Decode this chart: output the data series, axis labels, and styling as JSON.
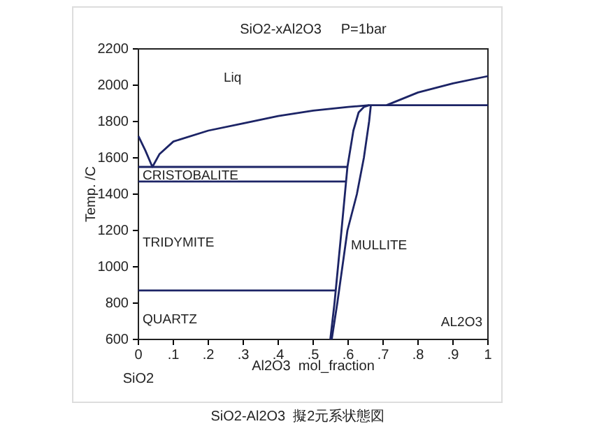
{
  "chart_data": {
    "type": "line",
    "title": "SiO2-xAl2O3     P=1bar",
    "xlabel": "Al2O3  mol_fraction",
    "ylabel": "Temp. /C",
    "xlim": [
      0,
      1
    ],
    "ylim": [
      600,
      2200
    ],
    "xticks": [
      0,
      {
        "value": 0.1,
        "label": ".1"
      },
      {
        "value": 0.2,
        "label": ".2"
      },
      {
        "value": 0.3,
        "label": ".3"
      },
      {
        "value": 0.4,
        "label": ".4"
      },
      {
        "value": 0.5,
        "label": ".5"
      },
      {
        "value": 0.6,
        "label": ".6"
      },
      {
        "value": 0.7,
        "label": ".7"
      },
      {
        "value": 0.8,
        "label": ".8"
      },
      {
        "value": 0.9,
        "label": ".9"
      },
      1
    ],
    "yticks": [
      600,
      800,
      1000,
      1200,
      1400,
      1600,
      1800,
      2000,
      2200
    ],
    "grid": false,
    "marker": "none",
    "line_style": "solid",
    "series": [
      {
        "color": "#1c2466",
        "x": [
          0,
          0.02,
          0.04,
          0.06,
          0.1,
          0.2,
          0.3,
          0.4,
          0.5,
          0.6,
          0.66,
          1
        ],
        "values": [
          1720,
          1640,
          1550,
          1620,
          1690,
          1750,
          1790,
          1830,
          1860,
          1880,
          1890,
          1890
        ]
      },
      {
        "color": "#1c2466",
        "x": [
          0.71,
          0.8,
          0.9,
          1
        ],
        "values": [
          1890,
          1960,
          2010,
          2050
        ]
      },
      {
        "color": "#1c2466",
        "x": [
          0,
          0.6
        ],
        "values": [
          1550,
          1550
        ]
      },
      {
        "color": "#1c2466",
        "x": [
          0,
          0.595
        ],
        "values": [
          1470,
          1470
        ]
      },
      {
        "color": "#1c2466",
        "x": [
          0,
          0.565
        ],
        "values": [
          870,
          870
        ]
      },
      {
        "color": "#1c2466",
        "x": [
          0.549,
          0.561,
          0.581,
          0.598,
          0.615,
          0.63,
          0.645,
          0.66
        ],
        "values": [
          600,
          800,
          1200,
          1550,
          1750,
          1850,
          1880,
          1890
        ]
      },
      {
        "color": "#1c2466",
        "x": [
          0.553,
          0.569,
          0.598,
          0.625,
          0.645,
          0.66,
          0.665
        ],
        "values": [
          600,
          800,
          1200,
          1400,
          1600,
          1800,
          1890
        ]
      }
    ],
    "annotations": [
      "Liq",
      "CRISTOBALITE",
      "TRIDYMITE",
      "QUARTZ",
      "MULLITE",
      "AL2O3",
      "SiO2",
      "SiO2-Al2O3  擬2元系状態図"
    ]
  }
}
